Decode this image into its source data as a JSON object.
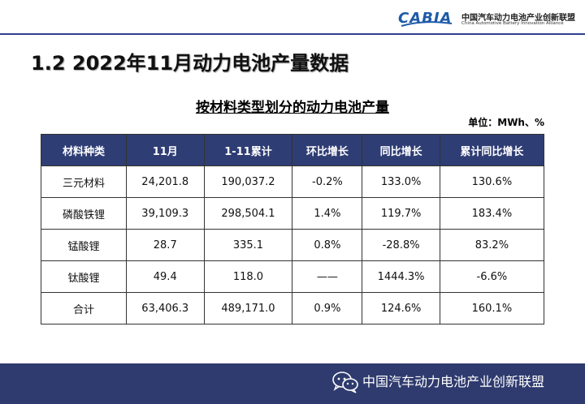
{
  "header": {
    "logo_mark": "CABIA",
    "logo_cn": "中国汽车动力电池产业创新联盟",
    "logo_en": "China Automotive Battery Innovation Alliance"
  },
  "section_title": "1.2 2022年11月动力电池产量数据",
  "table_title": "按材料类型划分的动力电池产量",
  "unit": "单位：MWh、%",
  "table": {
    "headers": [
      "材料种类",
      "11月",
      "1-11累计",
      "环比增长",
      "同比增长",
      "累计同比增长"
    ],
    "rows": [
      [
        "三元材料",
        "24,201.8",
        "190,037.2",
        "-0.2%",
        "133.0%",
        "130.6%"
      ],
      [
        "磷酸铁锂",
        "39,109.3",
        "298,504.1",
        "1.4%",
        "119.7%",
        "183.4%"
      ],
      [
        "锰酸锂",
        "28.7",
        "335.1",
        "0.8%",
        "-28.8%",
        "83.2%"
      ],
      [
        "钛酸锂",
        "49.4",
        "118.0",
        "——",
        "1444.3%",
        "-6.6%"
      ],
      [
        "合计",
        "63,406.3",
        "489,171.0",
        "0.9%",
        "124.6%",
        "160.1%"
      ]
    ]
  },
  "footer": {
    "icon": "wechat-icon",
    "text": "中国汽车动力电池产业创新联盟"
  },
  "colors": {
    "header_bg": "#2e3d74",
    "footer_bg": "#2f3b6e",
    "logo_blue": "#1f5aa8"
  }
}
